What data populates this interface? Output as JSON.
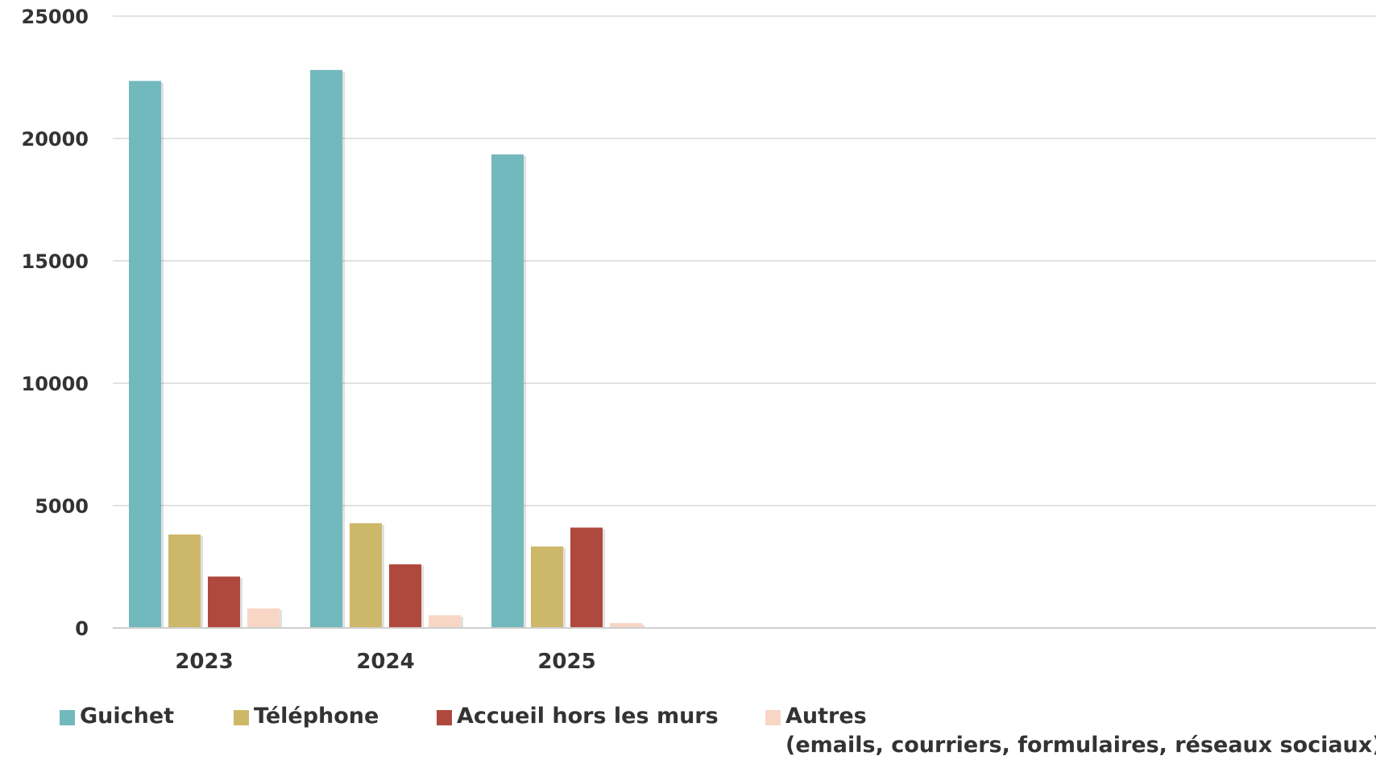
{
  "chart_data": {
    "type": "bar",
    "categories": [
      "2023",
      "2024",
      "2025"
    ],
    "series": [
      {
        "name": "Guichet",
        "values": [
          22350,
          22800,
          19350
        ],
        "color": "#72b9be"
      },
      {
        "name": "Téléphone",
        "values": [
          3820,
          4280,
          3330
        ],
        "color": "#cdb86a"
      },
      {
        "name": "Accueil hors les murs",
        "values": [
          2100,
          2600,
          4100
        ],
        "color": "#b0493d"
      },
      {
        "name": "Autres",
        "name_line2": "(emails, courriers, formulaires, réseaux sociaux)",
        "values": [
          800,
          520,
          200
        ],
        "color": "#f7d6c6"
      }
    ],
    "ylim": [
      0,
      25000
    ],
    "yticks": [
      "0",
      "5000",
      "10000",
      "15000",
      "20000",
      "25000"
    ],
    "title": "",
    "xlabel": "",
    "ylabel": "",
    "grid": true,
    "legend_position": "bottom"
  }
}
